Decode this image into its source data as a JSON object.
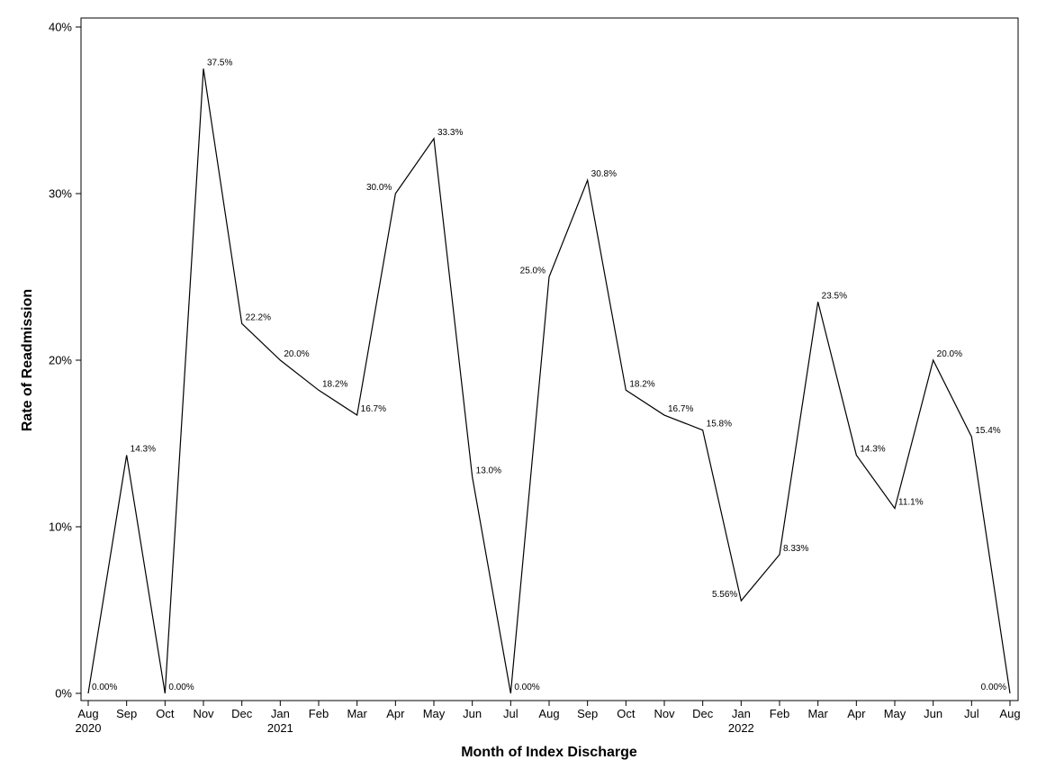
{
  "chart_data": {
    "type": "line",
    "title": "",
    "xlabel": "Month of Index Discharge",
    "ylabel": "Rate of Readmission",
    "ylim": [
      0,
      40
    ],
    "yticks": [
      0,
      10,
      20,
      30,
      40
    ],
    "ytick_labels": [
      "0%",
      "10%",
      "20%",
      "30%",
      "40%"
    ],
    "grid": false,
    "legend": "none",
    "categories": [
      "Aug",
      "Sep",
      "Oct",
      "Nov",
      "Dec",
      "Jan",
      "Feb",
      "Mar",
      "Apr",
      "May",
      "Jun",
      "Jul",
      "Aug",
      "Sep",
      "Oct",
      "Nov",
      "Dec",
      "Jan",
      "Feb",
      "Mar",
      "Apr",
      "May",
      "Jun",
      "Jul",
      "Aug"
    ],
    "year_labels": [
      "2020",
      "",
      "",
      "",
      "",
      "2021",
      "",
      "",
      "",
      "",
      "",
      "",
      "",
      "",
      "",
      "",
      "",
      "2022",
      "",
      "",
      "",
      "",
      "",
      "",
      ""
    ],
    "series": [
      {
        "name": "Rate of Readmission",
        "color": "#000000",
        "values": [
          0,
          14.3,
          0,
          37.5,
          22.2,
          20.0,
          18.2,
          16.7,
          30.0,
          33.3,
          13.0,
          0,
          25.0,
          30.8,
          18.2,
          16.7,
          15.8,
          5.56,
          8.33,
          23.5,
          14.3,
          11.1,
          20.0,
          15.4,
          0
        ],
        "data_labels": [
          "0.00%",
          "14.3%",
          "0.00%",
          "37.5%",
          "22.2%",
          "20.0%",
          "18.2%",
          "16.7%",
          "30.0%",
          "33.3%",
          "13.0%",
          "0.00%",
          "25.0%",
          "30.8%",
          "18.2%",
          "16.7%",
          "15.8%",
          "5.56%",
          "8.33%",
          "23.5%",
          "14.3%",
          "11.1%",
          "20.0%",
          "15.4%",
          "0.00%"
        ]
      }
    ]
  }
}
